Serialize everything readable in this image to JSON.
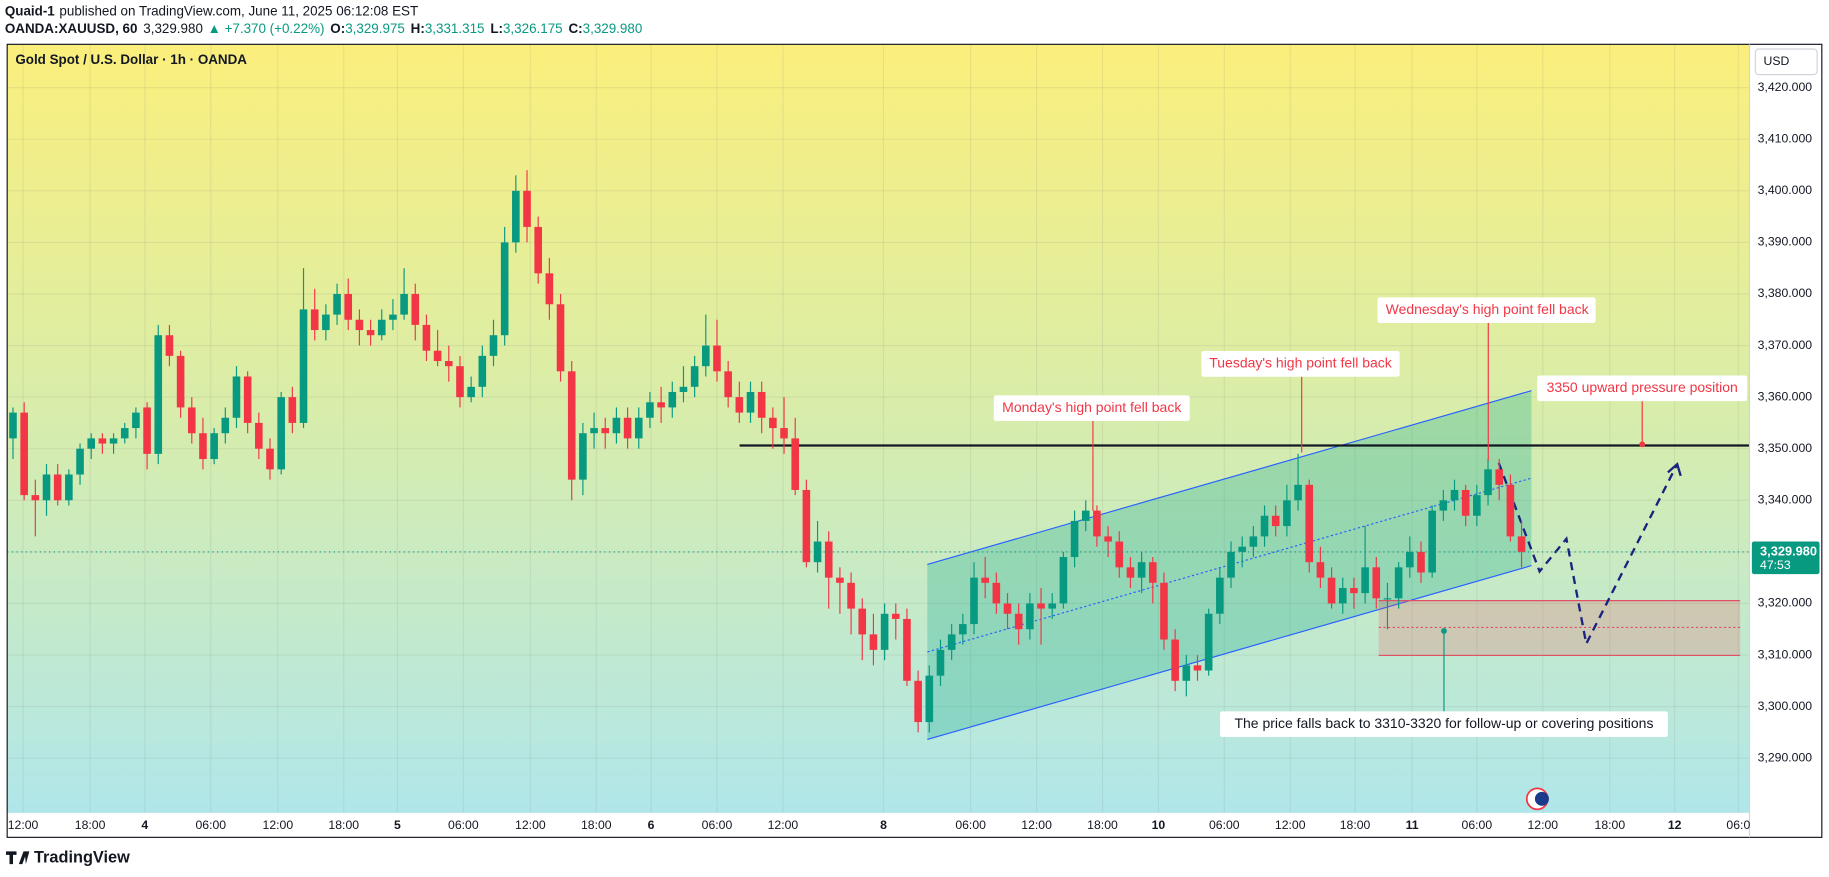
{
  "header": {
    "author": "Quaid-1",
    "published": "published on TradingView.com, June 11, 2025 06:12:08 EST",
    "symbol": "OANDA:XAUUSD, 60",
    "last": "3,329.980",
    "change": "▲ +7.370 (+0.22%)",
    "open_label": "O:",
    "open": "3,329.975",
    "high_label": "H:",
    "high": "3,331.315",
    "low_label": "L:",
    "low": "3,326.175",
    "close_label": "C:",
    "close": "3,329.980"
  },
  "footer": {
    "brand": "TradingView"
  },
  "chart_data": {
    "type": "candlestick",
    "title": "Gold Spot / U.S. Dollar · 1h · OANDA",
    "currency": "USD",
    "up_color": "#089981",
    "down_color": "#f23645",
    "ylim": [
      3279.4,
      3428.4
    ],
    "yticks": [
      {
        "value": 3290,
        "label": "3,290.000"
      },
      {
        "value": 3300,
        "label": "3,300.000"
      },
      {
        "value": 3310,
        "label": "3,310.000"
      },
      {
        "value": 3320,
        "label": "3,320.000"
      },
      {
        "value": 3330,
        "label": "3,330.000"
      },
      {
        "value": 3340,
        "label": "3,340.000"
      },
      {
        "value": 3350,
        "label": "3,350.000"
      },
      {
        "value": 3360,
        "label": "3,360.000"
      },
      {
        "value": 3370,
        "label": "3,370.000"
      },
      {
        "value": 3380,
        "label": "3,380.000"
      },
      {
        "value": 3390,
        "label": "3,390.000"
      },
      {
        "value": 3400,
        "label": "3,400.000"
      },
      {
        "value": 3410,
        "label": "3,410.000"
      },
      {
        "value": 3420,
        "label": "3,420.000"
      }
    ],
    "xlim": [
      -0.52,
      155.4
    ],
    "xticks": [
      {
        "value": 0.9,
        "label": "12:00"
      },
      {
        "value": 6.9,
        "label": "18:00"
      },
      {
        "value": 11.8,
        "label": "4"
      },
      {
        "value": 17.7,
        "label": "06:00"
      },
      {
        "value": 23.7,
        "label": "12:00"
      },
      {
        "value": 29.6,
        "label": "18:00"
      },
      {
        "value": 34.4,
        "label": "5"
      },
      {
        "value": 40.3,
        "label": "06:00"
      },
      {
        "value": 46.3,
        "label": "12:00"
      },
      {
        "value": 52.2,
        "label": "18:00"
      },
      {
        "value": 57.1,
        "label": "6"
      },
      {
        "value": 63,
        "label": "06:00"
      },
      {
        "value": 68.9,
        "label": "12:00"
      },
      {
        "value": 77.9,
        "label": "8"
      },
      {
        "value": 85.7,
        "label": "06:00"
      },
      {
        "value": 91.6,
        "label": "12:00"
      },
      {
        "value": 97.5,
        "label": "18:00"
      },
      {
        "value": 102.5,
        "label": "10"
      },
      {
        "value": 108.4,
        "label": "06:00"
      },
      {
        "value": 114.3,
        "label": "12:00"
      },
      {
        "value": 120.1,
        "label": "18:00"
      },
      {
        "value": 125.2,
        "label": "11"
      },
      {
        "value": 131,
        "label": "06:00"
      },
      {
        "value": 136.9,
        "label": "12:00"
      },
      {
        "value": 142.9,
        "label": "18:00"
      },
      {
        "value": 148.7,
        "label": "12"
      },
      {
        "value": 154.4,
        "label": "06:0"
      }
    ],
    "current_price": 3329.98,
    "current_price_label": "3,329.980",
    "countdown": "47:53",
    "annotations": [
      "Monday's high point fell back",
      "Tuesday's high point fell back",
      "Wednesday's high point fell back",
      "3350 upward pressure position",
      "The price falls back to 3310-3320 for follow-up or covering positions"
    ],
    "candles": [
      [
        3352,
        3358,
        3348,
        3357
      ],
      [
        3357,
        3359,
        3340,
        3341
      ],
      [
        3341,
        3344,
        3333,
        3340
      ],
      [
        3340,
        3347,
        3337,
        3345
      ],
      [
        3345,
        3347,
        3339,
        3340
      ],
      [
        3340,
        3346,
        3339,
        3345
      ],
      [
        3345,
        3351,
        3343,
        3350
      ],
      [
        3350,
        3353,
        3348,
        3352
      ],
      [
        3352,
        3353,
        3349,
        3351
      ],
      [
        3351,
        3353,
        3349,
        3352
      ],
      [
        3352,
        3355,
        3351,
        3354
      ],
      [
        3354,
        3358,
        3352,
        3357
      ],
      [
        3358,
        3359,
        3346,
        3349
      ],
      [
        3349,
        3374,
        3347,
        3372
      ],
      [
        3372,
        3374,
        3366,
        3368
      ],
      [
        3368,
        3369,
        3356,
        3358
      ],
      [
        3358,
        3360,
        3351,
        3353
      ],
      [
        3353,
        3356,
        3346,
        3348
      ],
      [
        3348,
        3354,
        3347,
        3353
      ],
      [
        3353,
        3358,
        3351,
        3356
      ],
      [
        3356,
        3366,
        3354,
        3364
      ],
      [
        3364,
        3365,
        3353,
        3355
      ],
      [
        3355,
        3357,
        3348,
        3350
      ],
      [
        3350,
        3352,
        3344,
        3346
      ],
      [
        3346,
        3361,
        3345,
        3360
      ],
      [
        3360,
        3362,
        3353,
        3355
      ],
      [
        3355,
        3385,
        3354,
        3377
      ],
      [
        3377,
        3381,
        3371,
        3373
      ],
      [
        3373,
        3378,
        3371,
        3376
      ],
      [
        3376,
        3382,
        3374,
        3380
      ],
      [
        3380,
        3383,
        3373,
        3375
      ],
      [
        3375,
        3377,
        3370,
        3373
      ],
      [
        3373,
        3375,
        3370,
        3372
      ],
      [
        3372,
        3377,
        3371,
        3375
      ],
      [
        3375,
        3379,
        3373,
        3376
      ],
      [
        3376,
        3385,
        3375,
        3380
      ],
      [
        3380,
        3382,
        3371,
        3374
      ],
      [
        3374,
        3376,
        3367,
        3369
      ],
      [
        3369,
        3373,
        3366,
        3367
      ],
      [
        3367,
        3370,
        3363,
        3366
      ],
      [
        3366,
        3368,
        3358,
        3360
      ],
      [
        3360,
        3364,
        3359,
        3362
      ],
      [
        3362,
        3370,
        3360,
        3368
      ],
      [
        3368,
        3375,
        3366,
        3372
      ],
      [
        3372,
        3393,
        3370,
        3390
      ],
      [
        3390,
        3403,
        3388,
        3400
      ],
      [
        3400,
        3404,
        3390,
        3393
      ],
      [
        3393,
        3395,
        3382,
        3384
      ],
      [
        3384,
        3387,
        3375,
        3378
      ],
      [
        3378,
        3380,
        3363,
        3365
      ],
      [
        3365,
        3367,
        3340,
        3344
      ],
      [
        3344,
        3355,
        3341,
        3353
      ],
      [
        3353,
        3357,
        3350,
        3354
      ],
      [
        3354,
        3356,
        3350,
        3353
      ],
      [
        3353,
        3358,
        3351,
        3356
      ],
      [
        3356,
        3358,
        3350,
        3352
      ],
      [
        3352,
        3358,
        3350,
        3356
      ],
      [
        3356,
        3361,
        3354,
        3359
      ],
      [
        3359,
        3362,
        3355,
        3358
      ],
      [
        3358,
        3363,
        3356,
        3361
      ],
      [
        3361,
        3366,
        3359,
        3362
      ],
      [
        3362,
        3368,
        3360,
        3366
      ],
      [
        3366,
        3376,
        3364,
        3370
      ],
      [
        3370,
        3375,
        3363,
        3365
      ],
      [
        3365,
        3367,
        3358,
        3360
      ],
      [
        3360,
        3363,
        3355,
        3357
      ],
      [
        3357,
        3363,
        3355,
        3361
      ],
      [
        3361,
        3363,
        3353,
        3356
      ],
      [
        3356,
        3358,
        3350,
        3354
      ],
      [
        3354,
        3360,
        3349,
        3352
      ],
      [
        3352,
        3356,
        3341,
        3342
      ],
      [
        3342,
        3344,
        3327,
        3328
      ],
      [
        3328,
        3336,
        3326,
        3332
      ],
      [
        3332,
        3334,
        3319,
        3325
      ],
      [
        3325,
        3327,
        3318,
        3324
      ],
      [
        3324,
        3326,
        3314,
        3319
      ],
      [
        3319,
        3321,
        3309,
        3314
      ],
      [
        3314,
        3318,
        3308,
        3311
      ],
      [
        3311,
        3320,
        3309,
        3318
      ],
      [
        3318,
        3320,
        3313,
        3317
      ],
      [
        3317,
        3319,
        3304,
        3305
      ],
      [
        3305,
        3307,
        3295,
        3297
      ],
      [
        3297,
        3308,
        3295,
        3306
      ],
      [
        3306,
        3313,
        3304,
        3311
      ],
      [
        3311,
        3316,
        3309,
        3314
      ],
      [
        3314,
        3318,
        3312,
        3316
      ],
      [
        3316,
        3328,
        3314,
        3325
      ],
      [
        3325,
        3329,
        3321,
        3324
      ],
      [
        3324,
        3326,
        3318,
        3320
      ],
      [
        3320,
        3322,
        3315,
        3318
      ],
      [
        3318,
        3320,
        3312,
        3315
      ],
      [
        3315,
        3322,
        3313,
        3320
      ],
      [
        3320,
        3323,
        3312,
        3319
      ],
      [
        3319,
        3322,
        3317,
        3320
      ],
      [
        3320,
        3330,
        3319,
        3329
      ],
      [
        3329,
        3338,
        3327,
        3336
      ],
      [
        3336,
        3340,
        3334,
        3338
      ],
      [
        3338,
        3339,
        3331,
        3333
      ],
      [
        3333,
        3335,
        3329,
        3332
      ],
      [
        3332,
        3334,
        3325,
        3327
      ],
      [
        3327,
        3329,
        3323,
        3325
      ],
      [
        3325,
        3330,
        3322,
        3328
      ],
      [
        3328,
        3329,
        3320,
        3324
      ],
      [
        3324,
        3326,
        3311,
        3313
      ],
      [
        3313,
        3315,
        3303,
        3305
      ],
      [
        3305,
        3310,
        3302,
        3308
      ],
      [
        3308,
        3310,
        3305,
        3307
      ],
      [
        3307,
        3319,
        3306,
        3318
      ],
      [
        3318,
        3327,
        3316,
        3325
      ],
      [
        3325,
        3332,
        3323,
        3330
      ],
      [
        3330,
        3333,
        3327,
        3331
      ],
      [
        3331,
        3335,
        3329,
        3333
      ],
      [
        3333,
        3339,
        3331,
        3337
      ],
      [
        3337,
        3339,
        3333,
        3335
      ],
      [
        3335,
        3343,
        3333,
        3340
      ],
      [
        3340,
        3349,
        3338,
        3343
      ],
      [
        3343,
        3344,
        3326,
        3328
      ],
      [
        3328,
        3331,
        3323,
        3325
      ],
      [
        3325,
        3327,
        3319,
        3320
      ],
      [
        3320,
        3325,
        3318,
        3323
      ],
      [
        3323,
        3325,
        3319,
        3322
      ],
      [
        3322,
        3335,
        3320,
        3327
      ],
      [
        3327,
        3329,
        3319,
        3321
      ],
      [
        3321,
        3324,
        3315,
        3321
      ],
      [
        3321,
        3328,
        3319,
        3327
      ],
      [
        3327,
        3333,
        3325,
        3330
      ],
      [
        3330,
        3332,
        3324,
        3326
      ],
      [
        3326,
        3339,
        3325,
        3338
      ],
      [
        3338,
        3342,
        3336,
        3340
      ],
      [
        3340,
        3344,
        3338,
        3342
      ],
      [
        3342,
        3343,
        3335,
        3337
      ],
      [
        3337,
        3343,
        3335,
        3341
      ],
      [
        3341,
        3348,
        3339,
        3346
      ],
      [
        3346,
        3348,
        3340,
        3343
      ],
      [
        3343,
        3345,
        3332,
        3333
      ],
      [
        3333,
        3336,
        3327,
        3330
      ]
    ]
  }
}
